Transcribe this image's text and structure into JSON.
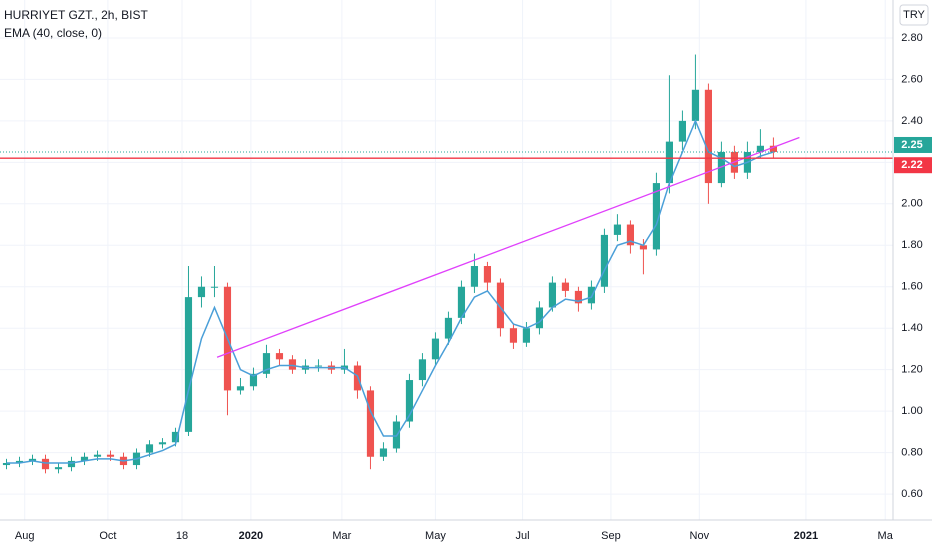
{
  "chart_data": {
    "type": "candlestick",
    "title": "HURRIYET GZT., 2h, BIST",
    "currency": "TRY",
    "x": [
      0,
      1,
      2,
      3,
      4,
      5,
      6,
      7,
      8,
      9,
      10,
      11,
      12,
      13,
      14,
      15,
      16,
      17,
      18,
      19,
      20,
      21,
      22,
      23,
      24,
      25,
      26,
      27,
      28,
      29,
      30,
      31,
      32,
      33,
      34,
      35,
      36,
      37,
      38,
      39,
      40,
      41,
      42,
      43,
      44,
      45,
      46,
      47,
      48,
      49,
      50,
      51,
      52,
      53,
      54,
      55,
      56,
      57,
      58,
      59
    ],
    "open": [
      0.74,
      0.75,
      0.76,
      0.77,
      0.72,
      0.73,
      0.76,
      0.78,
      0.79,
      0.78,
      0.74,
      0.8,
      0.84,
      0.85,
      0.9,
      1.55,
      1.6,
      1.6,
      1.1,
      1.12,
      1.18,
      1.28,
      1.25,
      1.2,
      1.22,
      1.22,
      1.2,
      1.22,
      1.1,
      0.78,
      0.82,
      0.95,
      1.15,
      1.25,
      1.35,
      1.45,
      1.6,
      1.7,
      1.62,
      1.4,
      1.33,
      1.4,
      1.5,
      1.62,
      1.58,
      1.52,
      1.6,
      1.85,
      1.9,
      1.8,
      1.78,
      2.1,
      2.3,
      2.4,
      2.55,
      2.1,
      2.25,
      2.15,
      2.25,
      2.28
    ],
    "high": [
      0.77,
      0.78,
      0.79,
      0.79,
      0.75,
      0.78,
      0.8,
      0.81,
      0.81,
      0.8,
      0.82,
      0.86,
      0.87,
      0.92,
      1.7,
      1.65,
      1.7,
      1.62,
      1.16,
      1.21,
      1.32,
      1.3,
      1.27,
      1.25,
      1.25,
      1.24,
      1.3,
      1.24,
      1.12,
      0.85,
      0.98,
      1.18,
      1.28,
      1.38,
      1.48,
      1.63,
      1.76,
      1.72,
      1.64,
      1.42,
      1.43,
      1.53,
      1.65,
      1.64,
      1.6,
      1.63,
      1.88,
      1.95,
      1.92,
      1.83,
      2.15,
      2.62,
      2.45,
      2.72,
      2.58,
      2.3,
      2.28,
      2.3,
      2.36,
      2.32
    ],
    "low": [
      0.72,
      0.73,
      0.74,
      0.7,
      0.7,
      0.71,
      0.74,
      0.76,
      0.76,
      0.72,
      0.72,
      0.78,
      0.82,
      0.83,
      0.88,
      1.5,
      1.55,
      0.98,
      1.08,
      1.1,
      1.16,
      1.22,
      1.18,
      1.18,
      1.19,
      1.18,
      1.18,
      1.06,
      0.72,
      0.76,
      0.8,
      0.92,
      1.12,
      1.22,
      1.32,
      1.42,
      1.57,
      1.58,
      1.36,
      1.3,
      1.31,
      1.37,
      1.48,
      1.55,
      1.48,
      1.49,
      1.57,
      1.82,
      1.76,
      1.66,
      1.75,
      2.05,
      2.26,
      2.36,
      2.0,
      2.08,
      2.12,
      2.12,
      2.22,
      2.22
    ],
    "close": [
      0.75,
      0.76,
      0.77,
      0.72,
      0.73,
      0.76,
      0.78,
      0.79,
      0.78,
      0.74,
      0.8,
      0.84,
      0.85,
      0.9,
      1.55,
      1.6,
      1.6,
      1.1,
      1.12,
      1.18,
      1.28,
      1.25,
      1.2,
      1.22,
      1.22,
      1.2,
      1.22,
      1.1,
      0.78,
      0.82,
      0.95,
      1.15,
      1.25,
      1.35,
      1.45,
      1.6,
      1.7,
      1.62,
      1.4,
      1.33,
      1.4,
      1.5,
      1.62,
      1.58,
      1.52,
      1.6,
      1.85,
      1.9,
      1.8,
      1.78,
      2.1,
      2.3,
      2.4,
      2.55,
      2.1,
      2.25,
      2.15,
      2.25,
      2.28,
      2.25
    ],
    "up_color": "#26a69a",
    "down_color": "#ef5350",
    "series": [
      {
        "name": "EMA (40, close, 0)",
        "color": "#4a9fd8",
        "values": [
          0.75,
          0.75,
          0.76,
          0.75,
          0.75,
          0.75,
          0.76,
          0.77,
          0.77,
          0.76,
          0.77,
          0.79,
          0.81,
          0.84,
          1.1,
          1.35,
          1.5,
          1.35,
          1.2,
          1.17,
          1.2,
          1.22,
          1.22,
          1.21,
          1.21,
          1.21,
          1.21,
          1.17,
          1.0,
          0.88,
          0.88,
          0.98,
          1.1,
          1.22,
          1.33,
          1.45,
          1.55,
          1.58,
          1.5,
          1.42,
          1.4,
          1.43,
          1.5,
          1.54,
          1.53,
          1.55,
          1.68,
          1.8,
          1.82,
          1.8,
          1.9,
          2.1,
          2.25,
          2.4,
          2.25,
          2.22,
          2.18,
          2.2,
          2.23,
          2.25
        ]
      }
    ],
    "trendline": {
      "x": [
        16.2,
        61.0
      ],
      "y": [
        1.26,
        2.32
      ],
      "color": "#e040fb"
    },
    "price_lines": [
      {
        "value": 2.25,
        "color": "#26a69a",
        "style": "dotted"
      },
      {
        "value": 2.22,
        "color": "#f23645",
        "style": "solid"
      }
    ],
    "xlim": [
      -0.5,
      68.2
    ],
    "ylim": [
      0.475,
      2.983
    ],
    "yticks": [
      {
        "value": 0.6,
        "label": "0.60"
      },
      {
        "value": 0.8,
        "label": "0.80"
      },
      {
        "value": 1.0,
        "label": "1.00"
      },
      {
        "value": 1.2,
        "label": "1.20"
      },
      {
        "value": 1.4,
        "label": "1.40"
      },
      {
        "value": 1.6,
        "label": "1.60"
      },
      {
        "value": 1.8,
        "label": "1.80"
      },
      {
        "value": 2.0,
        "label": "2.00"
      },
      {
        "value": 2.2,
        "label": "2.20"
      },
      {
        "value": 2.4,
        "label": "2.40"
      },
      {
        "value": 2.6,
        "label": "2.60"
      },
      {
        "value": 2.8,
        "label": "2.80"
      }
    ],
    "xticks": [
      {
        "value": 1.4,
        "label": "Aug"
      },
      {
        "value": 7.8,
        "label": "Oct"
      },
      {
        "value": 13.5,
        "label": "18"
      },
      {
        "value": 18.8,
        "label": "2020"
      },
      {
        "value": 25.8,
        "label": "Mar"
      },
      {
        "value": 33.0,
        "label": "May"
      },
      {
        "value": 39.7,
        "label": "Jul"
      },
      {
        "value": 46.5,
        "label": "Sep"
      },
      {
        "value": 53.3,
        "label": "Nov"
      },
      {
        "value": 61.5,
        "label": "2021"
      },
      {
        "value": 67.6,
        "label": "Ma"
      }
    ],
    "grid": true
  }
}
